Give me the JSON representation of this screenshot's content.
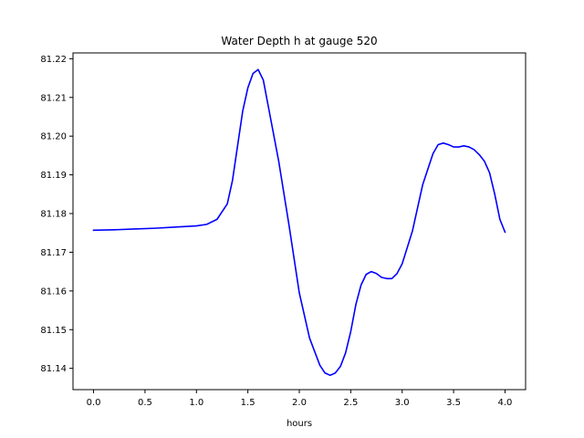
{
  "chart_data": {
    "type": "line",
    "title": "Water Depth h at gauge 520",
    "xlabel": "hours",
    "ylabel": "",
    "xlim": [
      -0.2,
      4.2
    ],
    "ylim": [
      81.1345,
      81.2215
    ],
    "xticks": [
      0.0,
      0.5,
      1.0,
      1.5,
      2.0,
      2.5,
      3.0,
      3.5,
      4.0
    ],
    "xtick_labels": [
      "0.0",
      "0.5",
      "1.0",
      "1.5",
      "2.0",
      "2.5",
      "3.0",
      "3.5",
      "4.0"
    ],
    "yticks": [
      81.14,
      81.15,
      81.16,
      81.17,
      81.18,
      81.19,
      81.2,
      81.21,
      81.22
    ],
    "ytick_labels": [
      "81.14",
      "81.15",
      "81.16",
      "81.17",
      "81.18",
      "81.19",
      "81.20",
      "81.21",
      "81.22"
    ],
    "grid": false,
    "series": [
      {
        "color": "#0000ff",
        "x": [
          0.0,
          0.2,
          0.4,
          0.6,
          0.8,
          1.0,
          1.1,
          1.2,
          1.3,
          1.35,
          1.4,
          1.45,
          1.5,
          1.55,
          1.6,
          1.65,
          1.7,
          1.8,
          1.9,
          2.0,
          2.1,
          2.2,
          2.25,
          2.3,
          2.35,
          2.4,
          2.45,
          2.5,
          2.55,
          2.6,
          2.65,
          2.7,
          2.75,
          2.8,
          2.85,
          2.9,
          2.95,
          3.0,
          3.1,
          3.2,
          3.3,
          3.35,
          3.4,
          3.45,
          3.5,
          3.55,
          3.6,
          3.65,
          3.7,
          3.75,
          3.8,
          3.85,
          3.9,
          3.95,
          4.0
        ],
        "y": [
          81.1757,
          81.1758,
          81.176,
          81.1762,
          81.1765,
          81.1768,
          81.1772,
          81.1785,
          81.1825,
          81.1885,
          81.1975,
          81.2065,
          81.2125,
          81.2162,
          81.2172,
          81.2145,
          81.2075,
          81.1935,
          81.177,
          81.1595,
          81.1478,
          81.1408,
          81.1388,
          81.1382,
          81.1388,
          81.1405,
          81.144,
          81.1495,
          81.1565,
          81.1615,
          81.1643,
          81.165,
          81.1645,
          81.1635,
          81.1632,
          81.1632,
          81.1645,
          81.167,
          81.1755,
          81.1875,
          81.1955,
          81.1978,
          81.1982,
          81.1978,
          81.1972,
          81.1972,
          81.1975,
          81.1972,
          81.1965,
          81.1952,
          81.1935,
          81.1905,
          81.185,
          81.1785,
          81.1752
        ]
      }
    ]
  }
}
